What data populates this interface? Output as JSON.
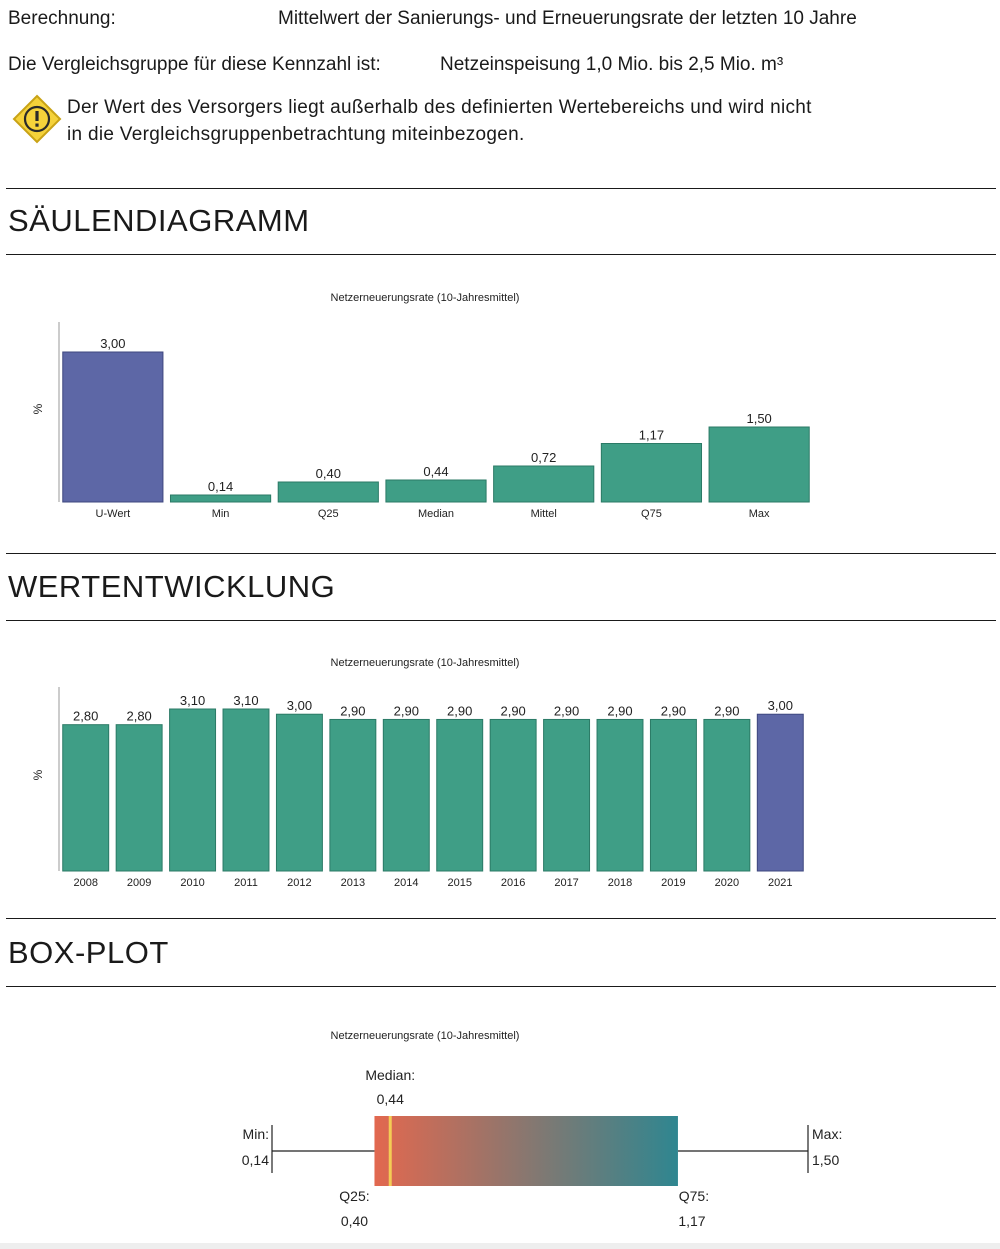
{
  "header": {
    "berechnung_label": "Berechnung:",
    "berechnung_value": "Mittelwert der Sanierungs- und Erneuerungsrate der letzten 10 Jahre",
    "group_label": "Die Vergleichsgruppe für diese Kennzahl ist:",
    "group_value": "Netzeinspeisung 1,0 Mio. bis 2,5 Mio. m³"
  },
  "warning": {
    "icon": "warning-icon",
    "line1": "Der Wert des Versorgers liegt außerhalb des definierten Wertebereichs und wird nicht",
    "line2": "in die Vergleichsgruppenbetrachtung miteinbezogen."
  },
  "sections": {
    "bar": "SÄULENDIAGRAMM",
    "trend": "WERTENTWICKLUNG",
    "box": "BOX-PLOT"
  },
  "colors": {
    "teal": "#3f9e86",
    "purple": "#5d67a6",
    "box_start": "#e2684f",
    "box_end": "#2f8690",
    "median_line": "#f3cc55"
  },
  "chart_data": [
    {
      "type": "bar",
      "title": "Netzerneuerungsrate (10-Jahresmittel)",
      "ylabel": "%",
      "categories": [
        "U-Wert",
        "Min",
        "Q25",
        "Median",
        "Mittel",
        "Q75",
        "Max"
      ],
      "values": [
        3.0,
        0.14,
        0.4,
        0.44,
        0.72,
        1.17,
        1.5
      ],
      "labels": [
        "3,00",
        "0,14",
        "0,40",
        "0,44",
        "0,72",
        "1,17",
        "1,50"
      ],
      "highlight": [
        "U-Wert"
      ],
      "ylim": [
        0,
        3.0
      ]
    },
    {
      "type": "bar",
      "title": "Netzerneuerungsrate (10-Jahresmittel)",
      "ylabel": "%",
      "categories": [
        "2008",
        "2009",
        "2010",
        "2011",
        "2012",
        "2013",
        "2014",
        "2015",
        "2016",
        "2017",
        "2018",
        "2019",
        "2020",
        "2021"
      ],
      "values": [
        2.8,
        2.8,
        3.1,
        3.1,
        3.0,
        2.9,
        2.9,
        2.9,
        2.9,
        2.9,
        2.9,
        2.9,
        2.9,
        3.0
      ],
      "labels": [
        "2,80",
        "2,80",
        "3,10",
        "3,10",
        "3,00",
        "2,90",
        "2,90",
        "2,90",
        "2,90",
        "2,90",
        "2,90",
        "2,90",
        "2,90",
        "3,00"
      ],
      "highlight": [
        "2021"
      ],
      "ylim": [
        0,
        3.1
      ]
    },
    {
      "type": "box",
      "title": "Netzerneuerungsrate (10-Jahresmittel)",
      "min": 0.14,
      "q25": 0.4,
      "median": 0.44,
      "q75": 1.17,
      "max": 1.5,
      "min_label": "Min:",
      "min_value": "0,14",
      "q25_label": "Q25:",
      "q25_value": "0,40",
      "median_label": "Median:",
      "median_value": "0,44",
      "q75_label": "Q75:",
      "q75_value": "1,17",
      "max_label": "Max:",
      "max_value": "1,50"
    }
  ]
}
